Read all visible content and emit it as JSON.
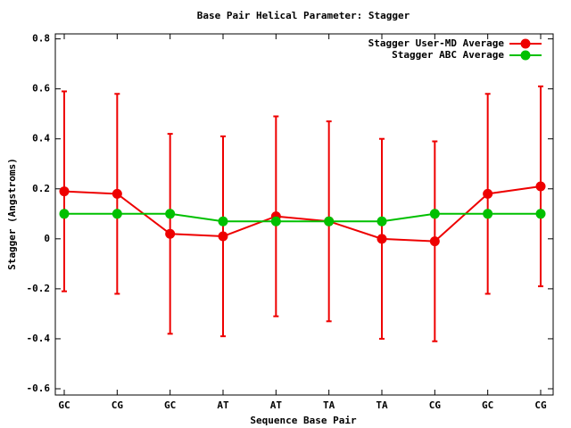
{
  "chart_data": {
    "type": "line",
    "title": "Base Pair Helical Parameter: Stagger",
    "xlabel": "Sequence Base Pair",
    "ylabel": "Stagger (Angstroms)",
    "categories": [
      "GC",
      "CG",
      "GC",
      "AT",
      "AT",
      "TA",
      "TA",
      "CG",
      "GC",
      "CG"
    ],
    "series": [
      {
        "name": "Stagger User-MD Average",
        "color": "#ee0000",
        "values": [
          0.19,
          0.18,
          0.02,
          0.01,
          0.09,
          0.07,
          0.0,
          -0.01,
          0.18,
          0.21
        ],
        "errors": [
          0.4,
          0.4,
          0.4,
          0.4,
          0.4,
          0.4,
          0.4,
          0.4,
          0.4,
          0.4
        ]
      },
      {
        "name": "Stagger ABC Average",
        "color": "#00c000",
        "values": [
          0.1,
          0.1,
          0.1,
          0.07,
          0.07,
          0.07,
          0.07,
          0.1,
          0.1,
          0.1
        ]
      }
    ],
    "ylim": [
      -0.625,
      0.82
    ],
    "yticks": [
      -0.6,
      -0.4,
      -0.2,
      0,
      0.2,
      0.4,
      0.6,
      0.8
    ],
    "legend": "top-right"
  }
}
